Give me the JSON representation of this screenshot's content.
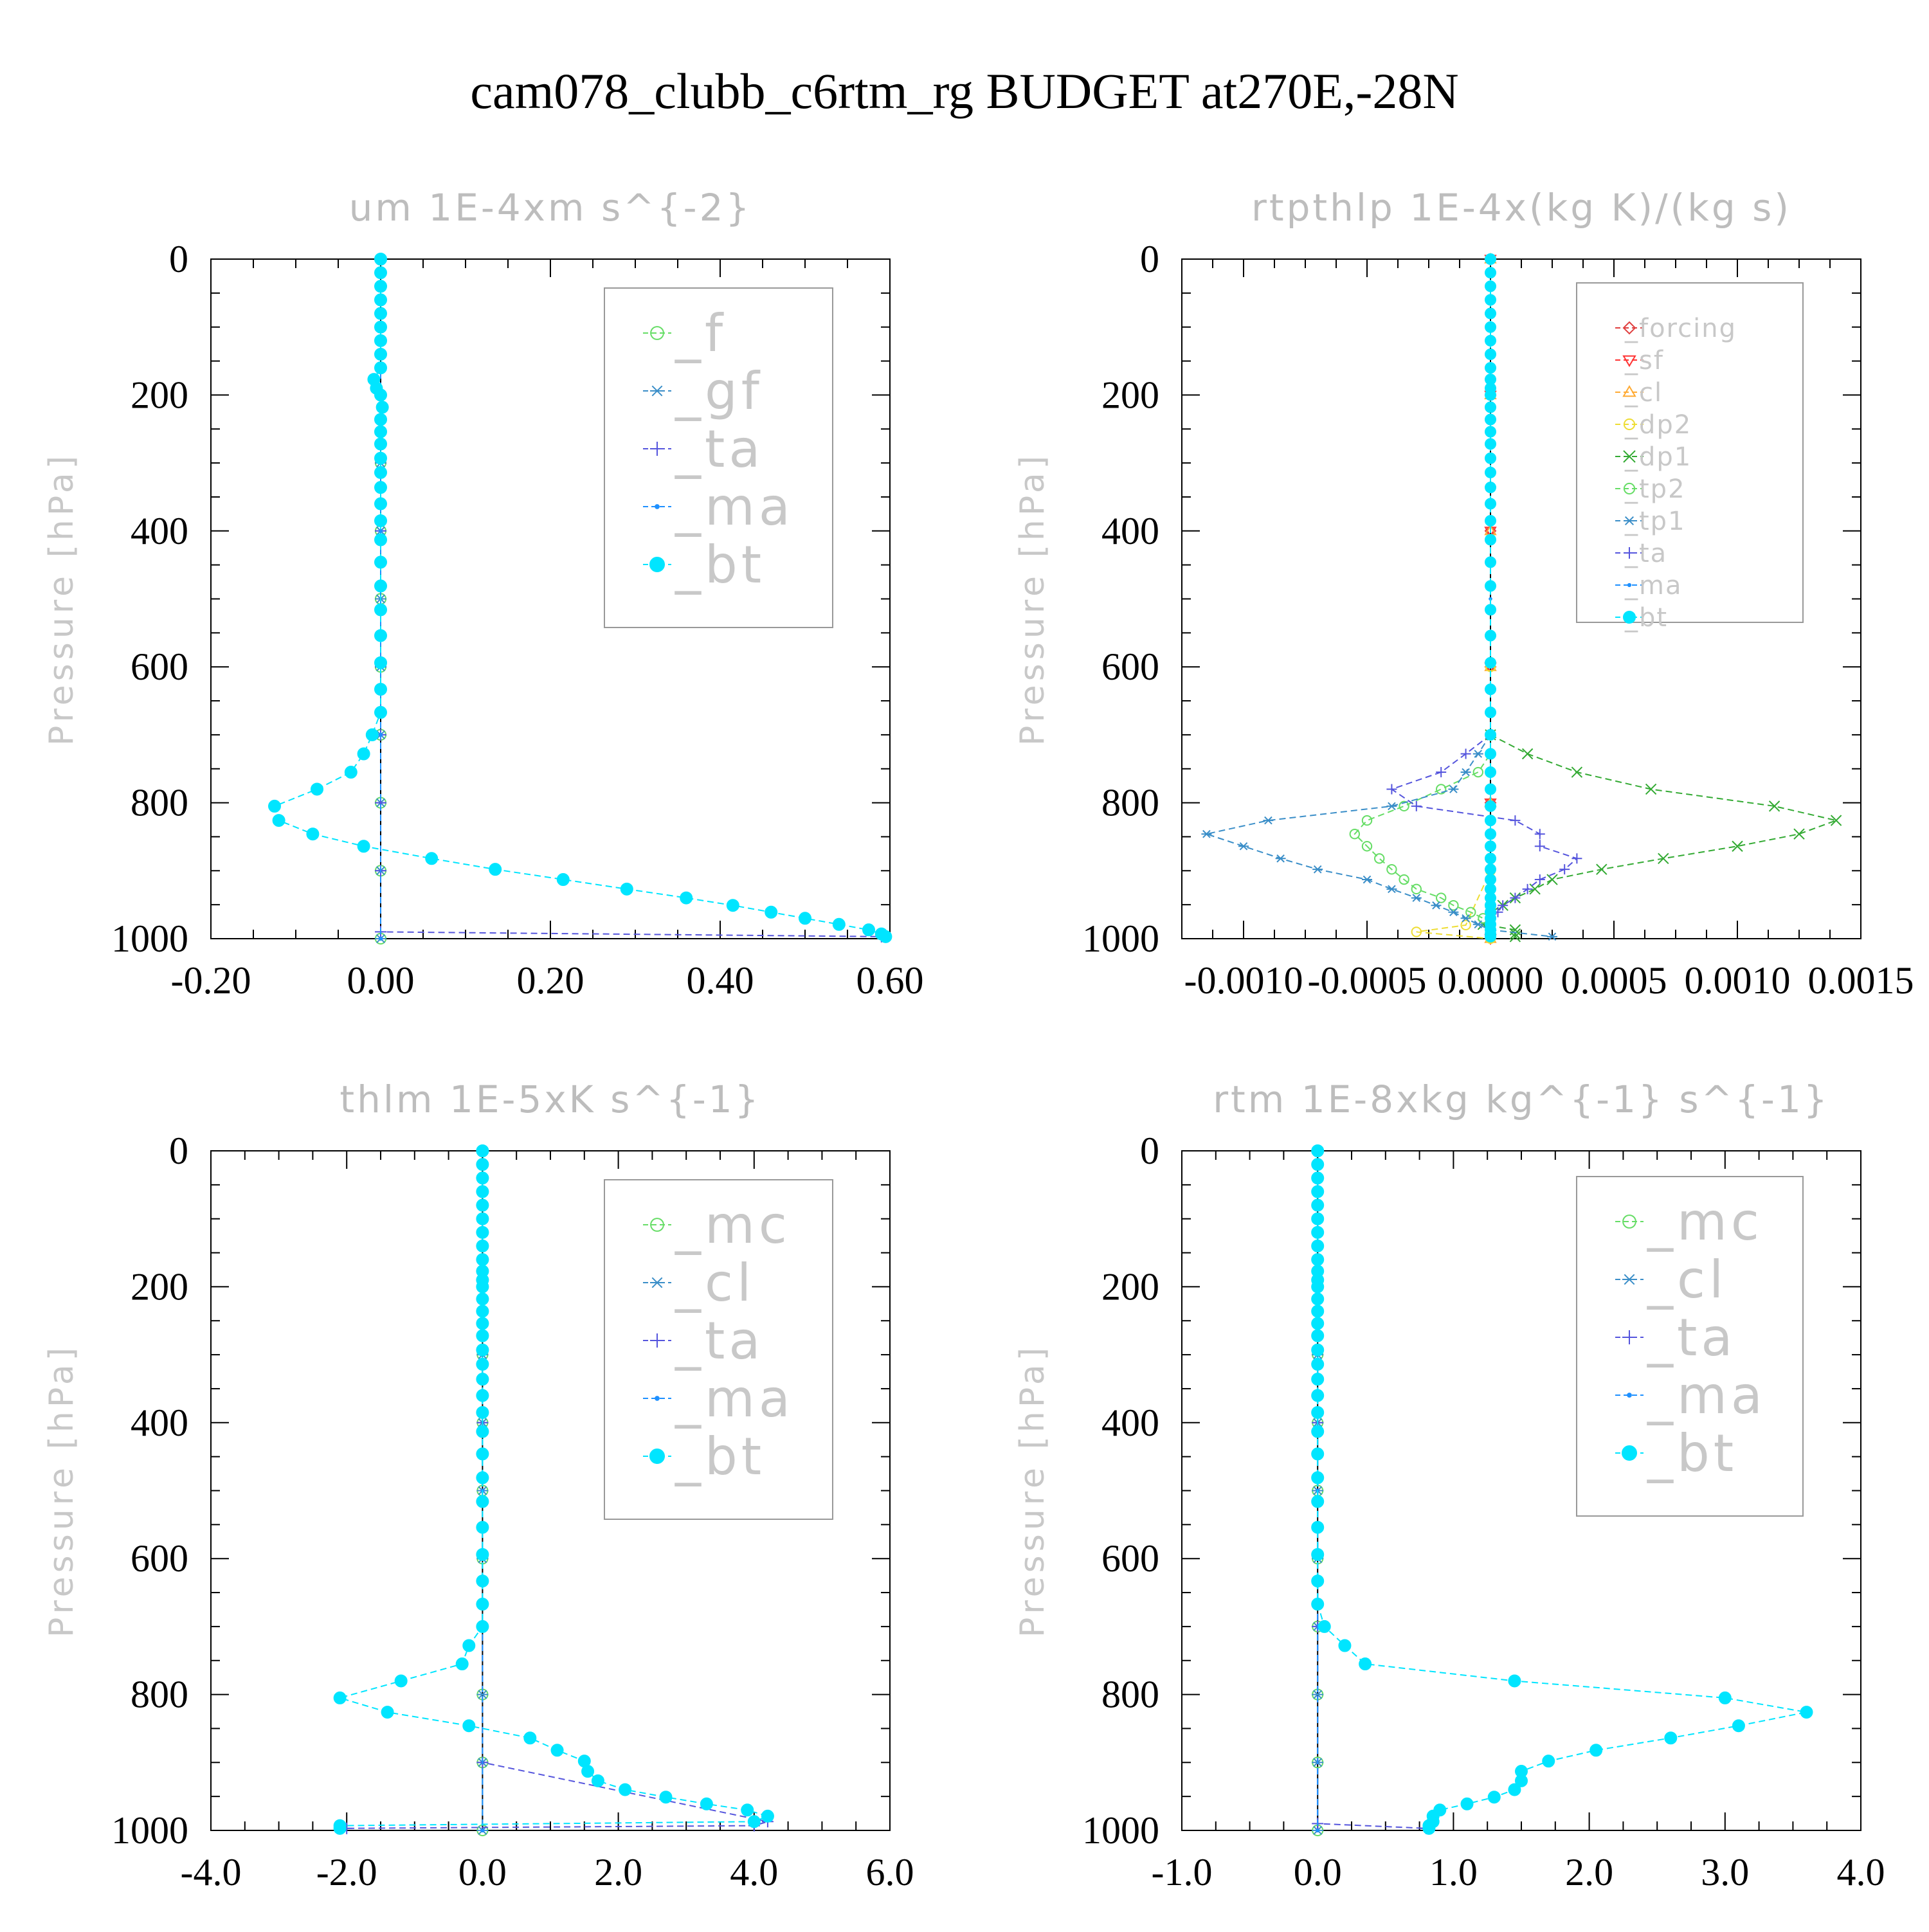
{
  "figure_title": "cam078_clubb_c6rtm_rg  BUDGET at270E,-28N",
  "chart_data": [
    {
      "type": "line",
      "title": "um  1E-4xm s^{-2}",
      "ylabel": "Pressure [hPa]",
      "xlabel": "",
      "xlim": [
        -0.2,
        0.6
      ],
      "ylim": [
        1000,
        0
      ],
      "x_ticks": [
        "-0.20",
        "0.00",
        "0.20",
        "0.40",
        "0.60"
      ],
      "y_ticks": [
        "0",
        "200",
        "400",
        "600",
        "800",
        "1000"
      ],
      "legend_position": "top-right",
      "series": [
        {
          "name": "_f",
          "color": "#66dd66",
          "marker": "circle-open",
          "pressure": [
            0,
            100,
            200,
            300,
            400,
            500,
            600,
            700,
            800,
            900,
            1000
          ],
          "values": [
            0,
            0,
            0,
            0,
            0,
            0,
            0,
            0,
            0,
            0,
            0
          ]
        },
        {
          "name": "_gf",
          "color": "#3a8ec8",
          "marker": "star",
          "pressure": [
            0,
            100,
            200,
            300,
            400,
            500,
            600,
            700,
            800,
            900,
            1000
          ],
          "values": [
            0,
            0,
            0,
            0,
            0,
            0,
            0,
            0,
            0,
            0,
            0
          ]
        },
        {
          "name": "_ta",
          "color": "#5555dd",
          "marker": "plus",
          "pressure": [
            0,
            200,
            400,
            600,
            700,
            800,
            900,
            990,
            997
          ],
          "values": [
            0,
            0,
            0,
            0,
            0,
            0,
            0,
            0,
            0.59
          ]
        },
        {
          "name": "_ma",
          "color": "#1e90ff",
          "marker": "dot",
          "pressure": [
            0,
            400,
            700,
            1000
          ],
          "values": [
            0,
            0,
            0,
            0
          ]
        },
        {
          "name": "_bt",
          "color": "#00e5ff",
          "marker": "circle-filled",
          "pressure": [
            0,
            20,
            40,
            60,
            80,
            100,
            120,
            140,
            160,
            177,
            190,
            200,
            218,
            236,
            254,
            272,
            293,
            314,
            336,
            360,
            385,
            413,
            446,
            481,
            516,
            554,
            594,
            633,
            667,
            700,
            728,
            755,
            780,
            805,
            826,
            846,
            864,
            882,
            898,
            913,
            927,
            940,
            951,
            961,
            970,
            979,
            987,
            993,
            997
          ],
          "values": [
            0,
            0,
            0,
            0,
            0,
            0,
            0,
            0,
            0,
            -0.008,
            -0.005,
            0,
            0.002,
            0,
            0,
            0,
            0,
            0,
            0,
            0,
            0,
            0,
            0,
            0,
            0,
            0,
            0,
            0,
            0,
            -0.01,
            -0.02,
            -0.035,
            -0.075,
            -0.125,
            -0.12,
            -0.08,
            -0.02,
            0.06,
            0.135,
            0.215,
            0.29,
            0.36,
            0.415,
            0.46,
            0.5,
            0.54,
            0.575,
            0.59,
            0.595
          ]
        }
      ]
    },
    {
      "type": "line",
      "title": "rtpthlp  1E-4x(kg K)/(kg s)",
      "ylabel": "Pressure [hPa]",
      "xlabel": "",
      "xlim": [
        -0.00125,
        0.0015
      ],
      "ylim": [
        1000,
        0
      ],
      "x_ticks": [
        "-0.0010",
        "-0.0005",
        "0.0000",
        "0.0005",
        "0.0010",
        "0.0015"
      ],
      "y_ticks": [
        "0",
        "200",
        "400",
        "600",
        "800",
        "1000"
      ],
      "legend_position": "top-right",
      "series": [
        {
          "name": "_forcing",
          "color": "#e04040",
          "marker": "diamond-open",
          "pressure": [
            0,
            200,
            400,
            600,
            800,
            1000
          ],
          "values": [
            0,
            0,
            0,
            0,
            0,
            0
          ]
        },
        {
          "name": "_sf",
          "color": "#ff3333",
          "marker": "triangle-down",
          "pressure": [
            0,
            200,
            400,
            600,
            800,
            1000
          ],
          "values": [
            0,
            0,
            0,
            0,
            0,
            0
          ]
        },
        {
          "name": "_cl",
          "color": "#ffaa33",
          "marker": "triangle-up",
          "pressure": [
            0,
            200,
            400,
            600,
            800,
            1000
          ],
          "values": [
            0,
            0,
            0,
            0,
            0,
            0
          ]
        },
        {
          "name": "_dp2",
          "color": "#eedd33",
          "marker": "circle-open",
          "pressure": [
            0,
            600,
            900,
            980,
            990,
            1000
          ],
          "values": [
            0,
            0,
            0,
            -0.0001,
            -0.0003,
            0
          ]
        },
        {
          "name": "_dp1",
          "color": "#33aa33",
          "marker": "x",
          "pressure": [
            700,
            728,
            755,
            780,
            805,
            826,
            846,
            864,
            882,
            898,
            913,
            927,
            940,
            951,
            961,
            970,
            979,
            987,
            993,
            997
          ],
          "values": [
            0,
            0.00015,
            0.00035,
            0.00065,
            0.00115,
            0.0014,
            0.00125,
            0.001,
            0.0007,
            0.00045,
            0.00025,
            0.00018,
            0.0001,
            5e-05,
            0,
            0,
            -3e-05,
            0.0001,
            0.0001,
            0.0001
          ]
        },
        {
          "name": "_tp2",
          "color": "#66dd66",
          "marker": "circle-open",
          "pressure": [
            700,
            728,
            755,
            780,
            805,
            826,
            846,
            864,
            882,
            898,
            913,
            927,
            940,
            951,
            961,
            970,
            979,
            987
          ],
          "values": [
            0,
            0,
            -5e-05,
            -0.0002,
            -0.00035,
            -0.0005,
            -0.00055,
            -0.0005,
            -0.00045,
            -0.0004,
            -0.00035,
            -0.0003,
            -0.0002,
            -0.00015,
            -8e-05,
            -3e-05,
            0,
            0
          ]
        },
        {
          "name": "_tp1",
          "color": "#3a8ec8",
          "marker": "star",
          "pressure": [
            700,
            728,
            755,
            780,
            805,
            826,
            846,
            864,
            882,
            898,
            913,
            927,
            940,
            951,
            961,
            970,
            979,
            987,
            997
          ],
          "values": [
            0,
            -5e-05,
            -0.0001,
            -0.00015,
            -0.0004,
            -0.0009,
            -0.00115,
            -0.001,
            -0.00085,
            -0.0007,
            -0.0005,
            -0.0004,
            -0.0003,
            -0.00022,
            -0.00015,
            -0.0001,
            -5e-05,
            0,
            0.00025
          ]
        },
        {
          "name": "_ta",
          "color": "#5555dd",
          "marker": "plus",
          "pressure": [
            700,
            728,
            755,
            780,
            805,
            826,
            846,
            864,
            882,
            898,
            913,
            927,
            940,
            951,
            961,
            970,
            979,
            987
          ],
          "values": [
            0,
            -0.0001,
            -0.0002,
            -0.0004,
            -0.0003,
            0.0001,
            0.0002,
            0.0002,
            0.00035,
            0.0003,
            0.0002,
            0.00015,
            0.0001,
            5e-05,
            3e-05,
            0,
            0,
            0
          ]
        },
        {
          "name": "_ma",
          "color": "#1e90ff",
          "marker": "dot",
          "pressure": [
            0,
            500,
            1000
          ],
          "values": [
            0,
            0,
            0
          ]
        },
        {
          "name": "_bt",
          "color": "#00e5ff",
          "marker": "circle-filled",
          "pressure": [
            0,
            20,
            40,
            60,
            80,
            100,
            120,
            140,
            160,
            177,
            190,
            200,
            218,
            236,
            254,
            272,
            293,
            314,
            336,
            360,
            385,
            413,
            446,
            481,
            516,
            554,
            594,
            633,
            667,
            700,
            728,
            755,
            780,
            805,
            826,
            846,
            864,
            882,
            898,
            913,
            927,
            940,
            951,
            961,
            970,
            979,
            987,
            993,
            997
          ],
          "values": [
            0,
            0,
            0,
            0,
            0,
            0,
            0,
            0,
            0,
            0,
            0,
            0,
            0,
            0,
            0,
            0,
            0,
            0,
            0,
            0,
            0,
            0,
            0,
            0,
            0,
            0,
            0,
            0,
            0,
            0,
            0,
            0,
            0,
            0,
            0,
            0,
            0,
            0,
            0,
            0,
            0,
            0,
            0,
            0,
            0,
            0,
            0,
            0,
            0
          ]
        }
      ]
    },
    {
      "type": "line",
      "title": "thlm  1E-5xK s^{-1}",
      "ylabel": "Pressure [hPa]",
      "xlabel": "",
      "xlim": [
        -4.0,
        6.0
      ],
      "ylim": [
        1000,
        0
      ],
      "x_ticks": [
        "-4.0",
        "-2.0",
        "0.0",
        "2.0",
        "4.0",
        "6.0"
      ],
      "y_ticks": [
        "0",
        "200",
        "400",
        "600",
        "800",
        "1000"
      ],
      "legend_position": "top-right",
      "series": [
        {
          "name": "_mc",
          "color": "#66dd66",
          "marker": "circle-open",
          "pressure": [
            0,
            100,
            200,
            300,
            400,
            500,
            600,
            700,
            800,
            900,
            1000
          ],
          "values": [
            0,
            0,
            0,
            0,
            0,
            0,
            0,
            0,
            0,
            0,
            0
          ]
        },
        {
          "name": "_cl",
          "color": "#3a8ec8",
          "marker": "star",
          "pressure": [
            0,
            100,
            200,
            300,
            400,
            500,
            600,
            700,
            800,
            900,
            1000
          ],
          "values": [
            0,
            0,
            0,
            0,
            0,
            0,
            0,
            0,
            0,
            0,
            0
          ]
        },
        {
          "name": "_ta",
          "color": "#5555dd",
          "marker": "plus",
          "pressure": [
            0,
            400,
            700,
            900,
            987,
            993,
            997
          ],
          "values": [
            0,
            0,
            0,
            0,
            4.2,
            4.0,
            -2.0
          ]
        },
        {
          "name": "_ma",
          "color": "#1e90ff",
          "marker": "dot",
          "pressure": [
            0,
            500,
            1000
          ],
          "values": [
            0,
            0,
            0
          ]
        },
        {
          "name": "_bt",
          "color": "#00e5ff",
          "marker": "circle-filled",
          "pressure": [
            0,
            20,
            40,
            60,
            80,
            100,
            120,
            140,
            160,
            177,
            190,
            200,
            218,
            236,
            254,
            272,
            293,
            314,
            336,
            360,
            385,
            413,
            446,
            481,
            516,
            554,
            594,
            633,
            667,
            700,
            728,
            755,
            780,
            805,
            826,
            846,
            864,
            882,
            898,
            913,
            927,
            940,
            951,
            961,
            970,
            979,
            987,
            993,
            997
          ],
          "values": [
            0,
            0,
            0,
            0,
            0,
            0,
            0,
            0,
            0,
            0,
            0,
            0,
            0,
            0,
            0,
            0,
            0,
            0,
            0,
            0,
            0,
            0,
            0,
            0,
            0,
            0,
            0,
            0,
            0,
            0,
            -0.2,
            -0.3,
            -1.2,
            -2.1,
            -1.4,
            -0.2,
            0.7,
            1.1,
            1.5,
            1.55,
            1.7,
            2.1,
            2.7,
            3.3,
            3.9,
            4.2,
            4.0,
            -2.1,
            -2.1
          ]
        }
      ]
    },
    {
      "type": "line",
      "title": "rtm  1E-8xkg kg^{-1} s^{-1}",
      "ylabel": "Pressure [hPa]",
      "xlabel": "",
      "xlim": [
        -1.0,
        4.0
      ],
      "ylim": [
        1000,
        0
      ],
      "x_ticks": [
        "-1.0",
        "0.0",
        "1.0",
        "2.0",
        "3.0",
        "4.0"
      ],
      "y_ticks": [
        "0",
        "200",
        "400",
        "600",
        "800",
        "1000"
      ],
      "legend_position": "top-right",
      "series": [
        {
          "name": "_mc",
          "color": "#66dd66",
          "marker": "circle-open",
          "pressure": [
            0,
            100,
            200,
            300,
            400,
            500,
            600,
            700,
            800,
            900,
            1000
          ],
          "values": [
            0,
            0,
            0,
            0,
            0,
            0,
            0,
            0,
            0,
            0,
            0
          ]
        },
        {
          "name": "_cl",
          "color": "#3a8ec8",
          "marker": "star",
          "pressure": [
            0,
            100,
            200,
            300,
            400,
            500,
            600,
            700,
            800,
            900,
            1000
          ],
          "values": [
            0,
            0,
            0,
            0,
            0,
            0,
            0,
            0,
            0,
            0,
            0
          ]
        },
        {
          "name": "_ta",
          "color": "#5555dd",
          "marker": "plus",
          "pressure": [
            0,
            400,
            700,
            990,
            997
          ],
          "values": [
            0,
            0,
            0,
            0,
            0.8
          ]
        },
        {
          "name": "_ma",
          "color": "#1e90ff",
          "marker": "dot",
          "pressure": [
            0,
            500,
            1000
          ],
          "values": [
            0,
            0,
            0
          ]
        },
        {
          "name": "_bt",
          "color": "#00e5ff",
          "marker": "circle-filled",
          "pressure": [
            0,
            20,
            40,
            60,
            80,
            100,
            120,
            140,
            160,
            177,
            190,
            200,
            218,
            236,
            254,
            272,
            293,
            314,
            336,
            360,
            385,
            413,
            446,
            481,
            516,
            554,
            594,
            633,
            667,
            700,
            728,
            755,
            780,
            805,
            826,
            846,
            864,
            882,
            898,
            913,
            927,
            940,
            951,
            961,
            970,
            979,
            987,
            993,
            997
          ],
          "values": [
            0,
            0,
            0,
            0,
            0,
            0,
            0,
            0,
            0,
            0,
            0,
            0,
            0,
            0,
            0,
            0,
            0,
            0,
            0,
            0,
            0,
            0,
            0,
            0,
            0,
            0,
            0,
            0,
            0,
            0.05,
            0.2,
            0.35,
            1.45,
            3.0,
            3.6,
            3.1,
            2.6,
            2.05,
            1.7,
            1.5,
            1.5,
            1.45,
            1.3,
            1.1,
            0.9,
            0.85,
            0.85,
            0.82,
            0.82
          ]
        }
      ]
    }
  ]
}
